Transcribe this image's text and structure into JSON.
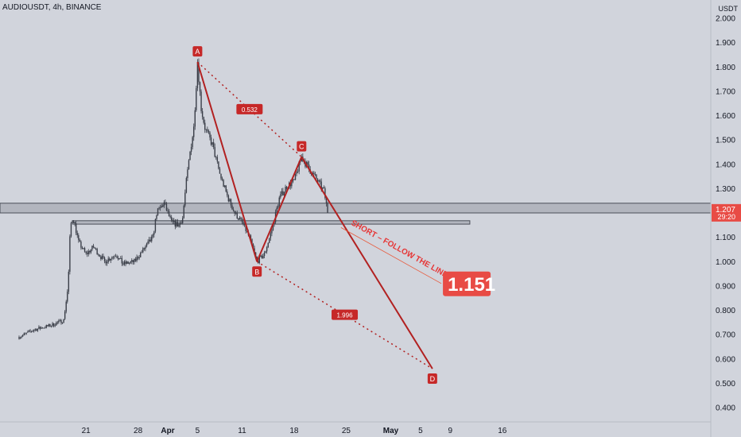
{
  "title": "AUDIOUSDT, 4h, BINANCE",
  "unit": "USDT",
  "colors": {
    "background": "#d1d4dc",
    "candle": "#3a3e48",
    "pattern": "#b22121",
    "tag": "#c62828",
    "zone_fill": "#b2b5be",
    "zone_stroke": "#4a4e58",
    "price_tag": "#e84b45"
  },
  "chart_data": {
    "type": "candlestick",
    "y_ticks": [
      "2.000",
      "1.900",
      "1.800",
      "1.700",
      "1.600",
      "1.500",
      "1.400",
      "1.300",
      "1.200",
      "1.100",
      "1.000",
      "0.900",
      "0.800",
      "0.700",
      "0.600",
      "0.500",
      "0.400"
    ],
    "x_ticks": [
      {
        "label": "21",
        "day": 21
      },
      {
        "label": "28",
        "day": 28
      },
      {
        "label": "Apr",
        "day": 32
      },
      {
        "label": "5",
        "day": 36
      },
      {
        "label": "11",
        "day": 42
      },
      {
        "label": "18",
        "day": 49
      },
      {
        "label": "25",
        "day": 56
      },
      {
        "label": "May",
        "day": 62
      },
      {
        "label": "5",
        "day": 66
      },
      {
        "label": "9",
        "day": 70
      },
      {
        "label": "16",
        "day": 77
      }
    ],
    "x_axis_note": "days counted from 1 March",
    "ylim": [
      0.34,
      2.04
    ],
    "price_path": [
      [
        12.0,
        0.69
      ],
      [
        14.0,
        0.72
      ],
      [
        16.5,
        0.74
      ],
      [
        18.0,
        0.76
      ],
      [
        18.6,
        0.9
      ],
      [
        18.9,
        1.15
      ],
      [
        19.3,
        1.18
      ],
      [
        20.0,
        1.08
      ],
      [
        21.0,
        1.03
      ],
      [
        22.0,
        1.06
      ],
      [
        23.5,
        1.0
      ],
      [
        25.0,
        1.03
      ],
      [
        26.0,
        0.99
      ],
      [
        27.5,
        1.0
      ],
      [
        29.0,
        1.06
      ],
      [
        30.0,
        1.1
      ],
      [
        30.5,
        1.2
      ],
      [
        31.5,
        1.24
      ],
      [
        32.5,
        1.16
      ],
      [
        33.5,
        1.15
      ],
      [
        34.0,
        1.18
      ],
      [
        34.5,
        1.33
      ],
      [
        35.0,
        1.45
      ],
      [
        35.5,
        1.55
      ],
      [
        36.0,
        1.82
      ],
      [
        36.5,
        1.63
      ],
      [
        37.0,
        1.55
      ],
      [
        38.0,
        1.48
      ],
      [
        39.0,
        1.36
      ],
      [
        40.0,
        1.27
      ],
      [
        41.0,
        1.2
      ],
      [
        42.0,
        1.16
      ],
      [
        43.0,
        1.1
      ],
      [
        44.0,
        1.0
      ],
      [
        45.0,
        1.03
      ],
      [
        46.0,
        1.13
      ],
      [
        47.0,
        1.26
      ],
      [
        48.0,
        1.31
      ],
      [
        49.0,
        1.33
      ],
      [
        50.0,
        1.43
      ],
      [
        51.0,
        1.38
      ],
      [
        52.0,
        1.34
      ],
      [
        53.0,
        1.29
      ],
      [
        53.5,
        1.207
      ]
    ],
    "resistance_zone": [
      1.2,
      1.24
    ],
    "support_zone": [
      1.154,
      1.168
    ],
    "last_price": "1.207",
    "countdown": "29:20",
    "target_price": "1.151",
    "annotation": "SHORT – FOLLOW THE LINE",
    "pattern_points": [
      {
        "label": "A",
        "day": 36.0,
        "price": 1.82
      },
      {
        "label": "B",
        "day": 44.0,
        "price": 1.0
      },
      {
        "label": "C",
        "day": 50.0,
        "price": 1.43
      },
      {
        "label": "D",
        "day": 67.6,
        "price": 0.56
      }
    ],
    "ratios": [
      {
        "label": "0.532",
        "between": [
          "A",
          "C"
        ]
      },
      {
        "label": "1.996",
        "between": [
          "B",
          "D"
        ]
      }
    ]
  }
}
